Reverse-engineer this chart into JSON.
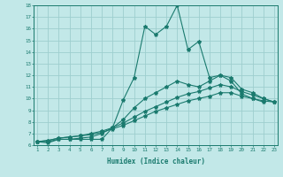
{
  "title": "",
  "xlabel": "Humidex (Indice chaleur)",
  "bg_color": "#c2e8e8",
  "grid_color": "#9ecece",
  "line_color": "#1a7a6e",
  "xmin": 1,
  "xmax": 23,
  "ymin": 6,
  "ymax": 18,
  "lines": [
    {
      "x": [
        1,
        2,
        3,
        4,
        5,
        6,
        7,
        8,
        9,
        10,
        11,
        12,
        13,
        14,
        15,
        16,
        17,
        18,
        19,
        20,
        21,
        22,
        23
      ],
      "y": [
        6.3,
        6.2,
        6.5,
        6.5,
        6.5,
        6.5,
        6.5,
        7.5,
        9.9,
        11.8,
        16.2,
        15.5,
        16.2,
        18.0,
        14.2,
        14.9,
        11.8,
        12.0,
        11.5,
        10.4,
        10.0,
        9.7,
        null
      ]
    },
    {
      "x": [
        1,
        2,
        3,
        4,
        5,
        6,
        7,
        8,
        9,
        10,
        11,
        12,
        13,
        14,
        15,
        16,
        17,
        18,
        19,
        20,
        21,
        22,
        23
      ],
      "y": [
        6.3,
        6.3,
        6.5,
        6.5,
        6.6,
        6.7,
        7.0,
        7.5,
        8.2,
        9.2,
        10.0,
        10.5,
        11.0,
        11.5,
        11.2,
        11.0,
        11.5,
        12.0,
        11.8,
        10.8,
        10.5,
        10.0,
        9.7
      ]
    },
    {
      "x": [
        1,
        2,
        3,
        4,
        5,
        6,
        7,
        8,
        9,
        10,
        11,
        12,
        13,
        14,
        15,
        16,
        17,
        18,
        19,
        20,
        21,
        22,
        23
      ],
      "y": [
        6.3,
        6.4,
        6.6,
        6.7,
        6.8,
        7.0,
        7.2,
        7.5,
        7.9,
        8.4,
        8.9,
        9.3,
        9.7,
        10.1,
        10.4,
        10.6,
        10.9,
        11.2,
        11.0,
        10.6,
        10.3,
        10.0,
        9.7
      ]
    },
    {
      "x": [
        1,
        2,
        3,
        4,
        5,
        6,
        7,
        8,
        9,
        10,
        11,
        12,
        13,
        14,
        15,
        16,
        17,
        18,
        19,
        20,
        21,
        22,
        23
      ],
      "y": [
        6.3,
        6.4,
        6.6,
        6.7,
        6.8,
        6.9,
        7.1,
        7.4,
        7.7,
        8.1,
        8.5,
        8.9,
        9.2,
        9.5,
        9.8,
        10.0,
        10.2,
        10.5,
        10.5,
        10.2,
        10.0,
        9.8,
        9.7
      ]
    }
  ],
  "yticks": [
    6,
    7,
    8,
    9,
    10,
    11,
    12,
    13,
    14,
    15,
    16,
    17,
    18
  ],
  "xticks": [
    1,
    2,
    3,
    4,
    5,
    6,
    7,
    8,
    9,
    10,
    11,
    12,
    13,
    14,
    15,
    16,
    17,
    18,
    19,
    20,
    21,
    22,
    23
  ]
}
